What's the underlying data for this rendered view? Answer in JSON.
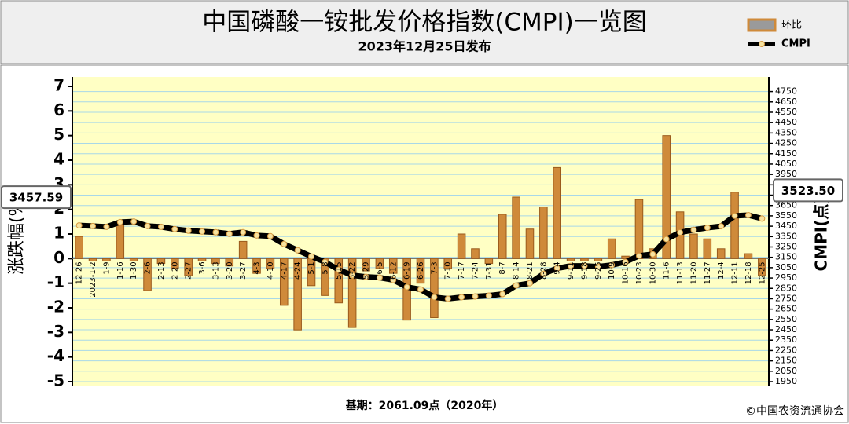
{
  "chart_data": {
    "type": "bar-line",
    "title": "中国磷酸一铵批发价格指数(CMPI)一览图",
    "subtitle": "2023年12月25日发布",
    "y_label": "涨跌幅(%)",
    "y2_label": "CMPI(点)",
    "base_note": "基期：2061.09点（2020年）",
    "source": "©中国农资流通协会",
    "categories": [
      "12-26",
      "2023-1-2",
      "1-9",
      "1-16",
      "1-30",
      "2-6",
      "2-13",
      "2-20",
      "2-27",
      "3-6",
      "3-13",
      "3-20",
      "3-27",
      "4-3",
      "4-10",
      "4-17",
      "4-24",
      "5-1",
      "5-8",
      "5-15",
      "5-22",
      "5-29",
      "6-5",
      "6-12",
      "6-19",
      "6-26",
      "7-3",
      "7-10",
      "7-17",
      "7-24",
      "7-31",
      "8-7",
      "8-14",
      "8-21",
      "8-28",
      "9-4",
      "9-11",
      "9-18",
      "9-25",
      "10-9",
      "10-16",
      "10-23",
      "10-30",
      "11-6",
      "11-13",
      "11-20",
      "11-27",
      "12-4",
      "12-11",
      "12-18",
      "12-25"
    ],
    "series": [
      {
        "name": "环比",
        "type": "bar",
        "color": "#cf8a3a",
        "values": [
          0.9,
          -0.1,
          -0.1,
          1.4,
          -0.1,
          -1.3,
          -0.2,
          -0.4,
          -0.7,
          -0.1,
          -0.2,
          -0.3,
          0.7,
          -0.6,
          -0.4,
          -1.9,
          -2.9,
          -1.1,
          -1.5,
          -1.8,
          -2.8,
          -0.5,
          -0.4,
          -0.6,
          -2.5,
          -1.0,
          -2.4,
          -0.4,
          1.0,
          0.4,
          -0.2,
          1.8,
          2.5,
          1.2,
          2.1,
          3.7,
          -0.1,
          -0.1,
          -0.1,
          0.8,
          0.1,
          2.4,
          0.4,
          5.0,
          1.9,
          1.0,
          0.8,
          0.4,
          2.7,
          0.2,
          -0.7
        ]
      },
      {
        "name": "CMPI",
        "type": "line",
        "axis": "y2",
        "color": "#000000",
        "values": [
          3457.59,
          3452,
          3444,
          3490,
          3495,
          3452,
          3444,
          3422,
          3407,
          3399,
          3392,
          3377,
          3392,
          3361,
          3354,
          3278,
          3218,
          3158,
          3105,
          3030,
          2976,
          2961,
          2954,
          2931,
          2863,
          2840,
          2765,
          2750,
          2765,
          2772,
          2780,
          2795,
          2878,
          2900,
          2990,
          3044,
          3067,
          3067,
          3060,
          3075,
          3105,
          3165,
          3180,
          3325,
          3390,
          3415,
          3435,
          3450,
          3550,
          3557,
          3523.5
        ],
        "value_labels": [
          "3457.59",
          null,
          null,
          null,
          null,
          null,
          null,
          null,
          null,
          null,
          null,
          null,
          null,
          null,
          null,
          null,
          null,
          null,
          null,
          null,
          null,
          null,
          null,
          null,
          null,
          null,
          null,
          null,
          null,
          null,
          null,
          null,
          null,
          null,
          null,
          null,
          null,
          null,
          null,
          null,
          null,
          null,
          null,
          null,
          null,
          null,
          null,
          null,
          null,
          null,
          "3523.50"
        ]
      }
    ],
    "ylim": [
      -5,
      7
    ],
    "yticks": [
      -5,
      -4,
      -3,
      -2,
      -1,
      0,
      1,
      2,
      3,
      4,
      5,
      6,
      7
    ],
    "y2lim": [
      1950,
      4800
    ],
    "y2ticks": [
      1950,
      2050,
      2150,
      2250,
      2350,
      2450,
      2550,
      2650,
      2750,
      2850,
      2950,
      3050,
      3150,
      3250,
      3350,
      3450,
      3550,
      3650,
      3750,
      3850,
      3950,
      4050,
      4150,
      4250,
      4350,
      4450,
      4550,
      4650,
      4750
    ],
    "grid": true,
    "legend": "top-right"
  }
}
